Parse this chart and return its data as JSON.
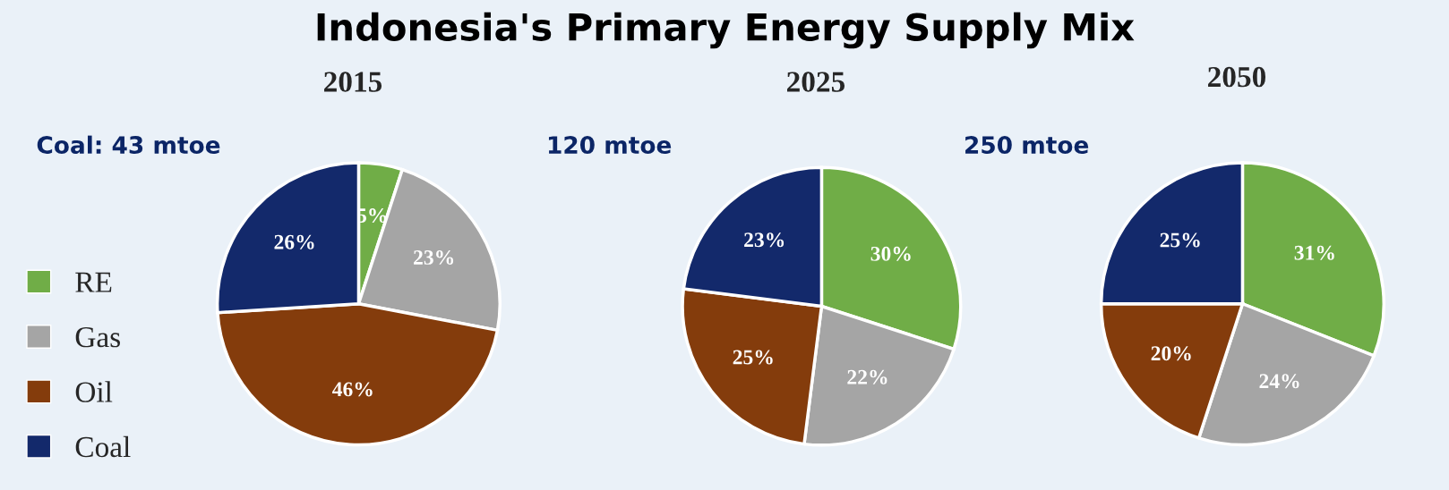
{
  "chart_data": [
    {
      "type": "other",
      "title": "Indonesia's Primary Energy Supply Mix"
    },
    {
      "type": "pie",
      "title": "2015",
      "annotations": [
        "Coal: 43 mtoe"
      ],
      "categories": [
        "RE",
        "Gas",
        "Oil",
        "Coal"
      ],
      "values": [
        5,
        23,
        46,
        26
      ],
      "value_labels": [
        "5%",
        "23%",
        "46%",
        "26%"
      ],
      "colors": [
        "#70ad47",
        "#a5a5a5",
        "#843c0c",
        "#13296b"
      ],
      "legend": "left"
    },
    {
      "type": "pie",
      "title": "2025",
      "annotations": [
        "120 mtoe"
      ],
      "categories": [
        null,
        null,
        null,
        null
      ],
      "values": [
        30,
        22,
        25,
        23
      ],
      "value_labels": [
        "30%",
        "22%",
        "25%",
        "23%"
      ],
      "colors": [
        "#70ad47",
        "#a5a5a5",
        "#843c0c",
        "#13296b"
      ]
    },
    {
      "type": "pie",
      "title": "2050",
      "annotations": [
        "250 mtoe"
      ],
      "categories": [
        null,
        null,
        null,
        null
      ],
      "values": [
        31,
        24,
        20,
        25
      ],
      "value_labels": [
        "31%",
        "24%",
        "20%",
        "25%"
      ],
      "colors": [
        "#70ad47",
        "#a5a5a5",
        "#843c0c",
        "#13296b"
      ]
    }
  ]
}
